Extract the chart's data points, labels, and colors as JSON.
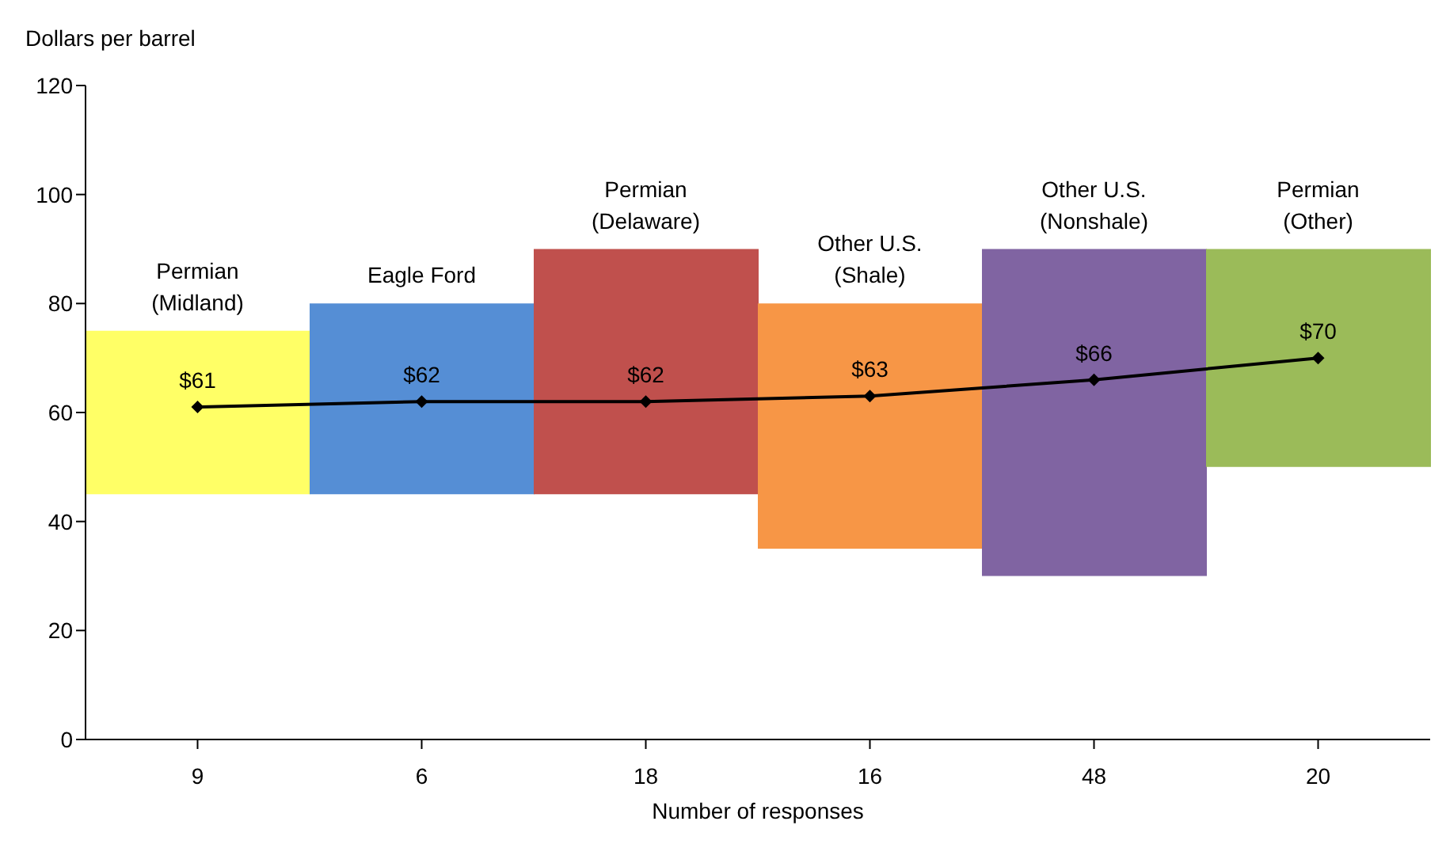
{
  "chart_data": {
    "type": "bar",
    "ylabel": "Dollars per barrel",
    "xlabel": "Number of responses",
    "categories": [
      "9",
      "6",
      "18",
      "16",
      "48",
      "20"
    ],
    "series": [
      {
        "values": [
          30,
          35,
          45,
          45,
          60,
          40
        ],
        "base": [
          45,
          45,
          45,
          35,
          30,
          50
        ],
        "colors": [
          "#ffff66",
          "#558ed5",
          "#c0504d",
          "#f79646",
          "#8064a2",
          "#9bbb59"
        ]
      },
      {
        "type": "line",
        "color": "#000000",
        "values": [
          61,
          62,
          62,
          63,
          66,
          70
        ],
        "value_labels": [
          "$61",
          "$62",
          "$62",
          "$63",
          "$66",
          "$70"
        ],
        "marker": "diamond"
      }
    ],
    "ylim": [
      0,
      120
    ],
    "yticks": [
      0,
      20,
      40,
      60,
      80,
      100,
      120
    ],
    "annotations": [
      "Permian\n(Midland)",
      "Eagle Ford",
      "Permian\n(Delaware)",
      "Other U.S.\n(Shale)",
      "Other U.S.\n(Nonshale)",
      "Permian\n(Other)"
    ]
  }
}
